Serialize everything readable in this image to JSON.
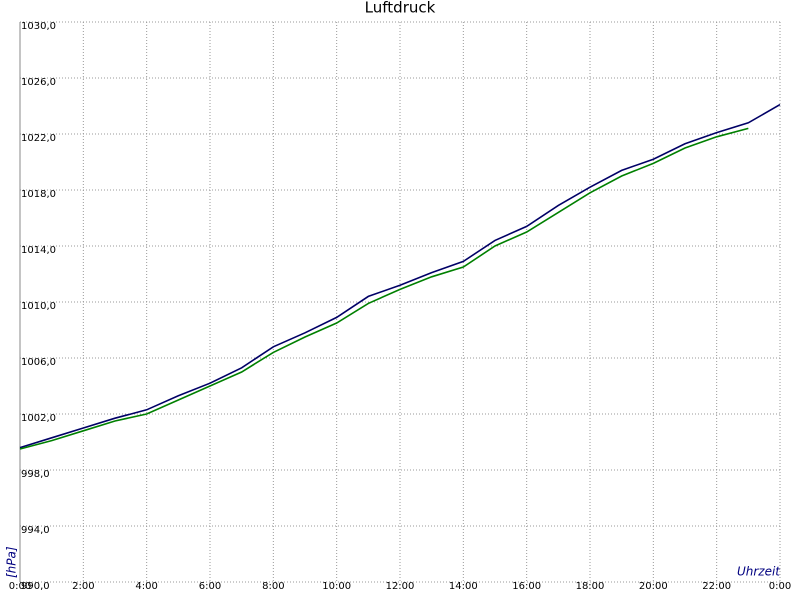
{
  "chart_data": {
    "type": "line",
    "title": "Luftdruck",
    "ylabel": "[hPa]",
    "xlabel": "Uhrzeit",
    "x": [
      0,
      1,
      2,
      3,
      4,
      5,
      6,
      7,
      8,
      9,
      10,
      11,
      12,
      13,
      14,
      15,
      16,
      17,
      18,
      19,
      20,
      21,
      22,
      23,
      24
    ],
    "series": [
      {
        "color": "#000066",
        "values": [
          999.6,
          1000.3,
          1001.0,
          1001.7,
          1002.3,
          1003.3,
          1004.2,
          1005.3,
          1006.8,
          1007.8,
          1008.9,
          1010.4,
          1011.2,
          1012.1,
          1012.9,
          1014.4,
          1015.4,
          1016.9,
          1018.2,
          1019.4,
          1020.2,
          1021.3,
          1022.1,
          1022.8,
          1024.1
        ]
      },
      {
        "color": "#008000",
        "values": [
          999.5,
          1000.1,
          1000.8,
          1001.5,
          1002.0,
          1003.0,
          1004.0,
          1005.0,
          1006.4,
          1007.5,
          1008.5,
          1009.9,
          1010.9,
          1011.8,
          1012.5,
          1014.0,
          1015.0,
          1016.4,
          1017.8,
          1019.0,
          1019.9,
          1021.0,
          1021.8,
          1022.4,
          null
        ]
      }
    ],
    "xlim": [
      0,
      24
    ],
    "xticks": [
      {
        "value": 0,
        "label": "0:00"
      },
      {
        "value": 2,
        "label": "2:00"
      },
      {
        "value": 4,
        "label": "4:00"
      },
      {
        "value": 6,
        "label": "6:00"
      },
      {
        "value": 8,
        "label": "8:00"
      },
      {
        "value": 10,
        "label": "10:00"
      },
      {
        "value": 12,
        "label": "12:00"
      },
      {
        "value": 14,
        "label": "14:00"
      },
      {
        "value": 16,
        "label": "16:00"
      },
      {
        "value": 18,
        "label": "18:00"
      },
      {
        "value": 20,
        "label": "20:00"
      },
      {
        "value": 22,
        "label": "22:00"
      },
      {
        "value": 24,
        "label": "0:00"
      }
    ],
    "ylim": [
      990,
      1030
    ],
    "yticks": [
      {
        "value": 990,
        "label": "990,0"
      },
      {
        "value": 994,
        "label": "994,0"
      },
      {
        "value": 998,
        "label": "998,0"
      },
      {
        "value": 1002,
        "label": "1002,0"
      },
      {
        "value": 1006,
        "label": "1006,0"
      },
      {
        "value": 1010,
        "label": "1010,0"
      },
      {
        "value": 1014,
        "label": "1014,0"
      },
      {
        "value": 1018,
        "label": "1018,0"
      },
      {
        "value": 1022,
        "label": "1022,0"
      },
      {
        "value": 1026,
        "label": "1026,0"
      },
      {
        "value": 1030,
        "label": "1030,0"
      }
    ],
    "grid": true
  }
}
